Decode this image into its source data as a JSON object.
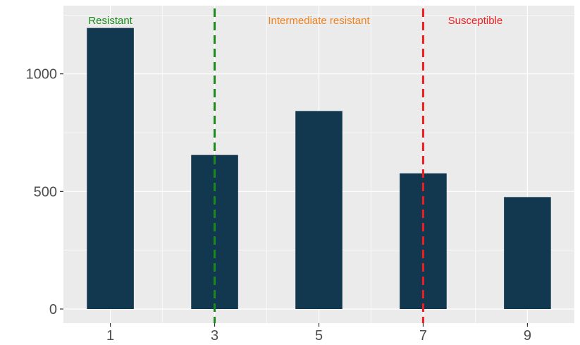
{
  "chart_data": {
    "type": "bar",
    "x": [
      1,
      3,
      5,
      7,
      9
    ],
    "values": [
      1195,
      655,
      842,
      577,
      476
    ],
    "xlim": [
      0.1,
      9.9
    ],
    "ylim": [
      -60,
      1290
    ],
    "x_ticks": [
      1,
      3,
      5,
      7,
      9
    ],
    "x_tick_labels": [
      "1",
      "3",
      "5",
      "7",
      "9"
    ],
    "y_ticks": [
      0,
      500,
      1000
    ],
    "y_tick_labels": [
      "0",
      "500",
      "1000"
    ],
    "grid": true,
    "bar_color": "#12384f",
    "panel_background": "#ebebeb",
    "grid_color": "#ffffff",
    "thresholds": [
      {
        "x": 3,
        "color": "#1a8a1a",
        "style": "dashed"
      },
      {
        "x": 7,
        "color": "#f01e1e",
        "style": "dashed"
      }
    ],
    "annotations": [
      {
        "text": "Resistant",
        "x": 1,
        "color": "#1a8a1a"
      },
      {
        "text": "Intermediate resistant",
        "x": 5,
        "color": "#f0821e"
      },
      {
        "text": "Susceptible",
        "x": 8,
        "color": "#f01e1e"
      }
    ]
  }
}
